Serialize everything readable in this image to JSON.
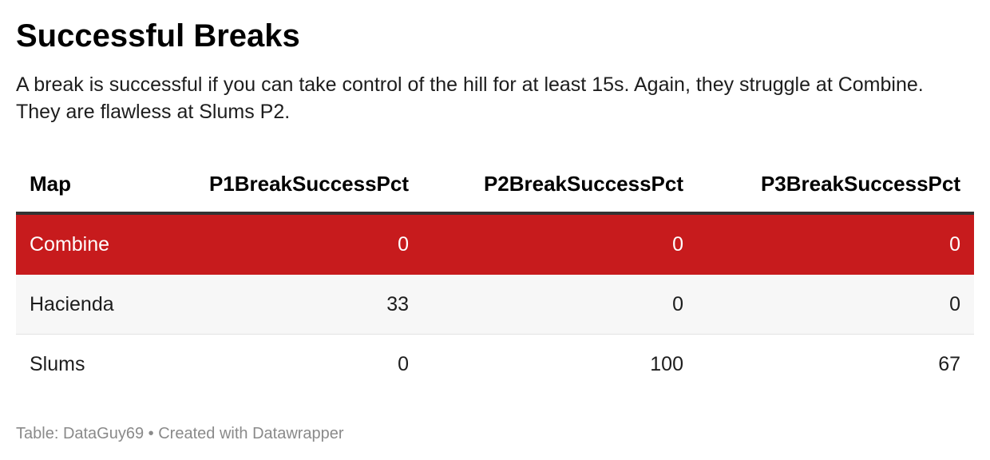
{
  "title": "Successful Breaks",
  "subtitle": "A break is successful if you can take control of the hill for at least 15s. Again, they struggle at Combine. They are flawless at Slums P2.",
  "footer": {
    "source_label": "Table: ",
    "source": "DataGuy69",
    "separator": " • ",
    "credit": "Created with Datawrapper"
  },
  "colors": {
    "highlight_row": "#c71b1d",
    "stripe_row": "#f7f7f7",
    "header_rule": "#333333"
  },
  "chart_data": {
    "type": "table",
    "columns": [
      "Map",
      "P1BreakSuccessPct",
      "P2BreakSuccessPct",
      "P3BreakSuccessPct"
    ],
    "rows": [
      {
        "map": "Combine",
        "p1": "0",
        "p2": "0",
        "p3": "0",
        "highlighted": true
      },
      {
        "map": "Hacienda",
        "p1": "33",
        "p2": "0",
        "p3": "0",
        "highlighted": false
      },
      {
        "map": "Slums",
        "p1": "0",
        "p2": "100",
        "p3": "67",
        "highlighted": false
      }
    ]
  }
}
